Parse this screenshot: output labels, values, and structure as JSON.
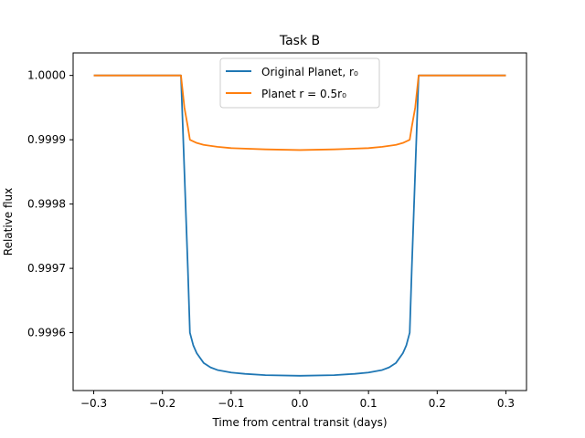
{
  "chart_data": {
    "type": "line",
    "title": "Task B",
    "xlabel": "Time from central transit (days)",
    "ylabel": "Relative flux",
    "xlim": [
      -0.33,
      0.33
    ],
    "ylim": [
      0.99951,
      1.000035
    ],
    "x_ticks": [
      -0.3,
      -0.2,
      -0.1,
      0.0,
      0.1,
      0.2,
      0.3
    ],
    "x_tick_labels": [
      "−0.3",
      "−0.2",
      "−0.1",
      "0.0",
      "0.1",
      "0.2",
      "0.3"
    ],
    "y_ticks": [
      0.9996,
      0.9997,
      0.9998,
      0.9999,
      1.0
    ],
    "y_tick_labels": [
      "0.9996",
      "0.9997",
      "0.9998",
      "0.9999",
      "1.0000"
    ],
    "grid": false,
    "legend_position": "top-center",
    "series": [
      {
        "name": "Original Planet, r₀",
        "color": "#1f77b4",
        "points": [
          [
            -0.3,
            1.0
          ],
          [
            -0.25,
            1.0
          ],
          [
            -0.2,
            1.0
          ],
          [
            -0.173,
            1.0
          ],
          [
            -0.168,
            0.99985
          ],
          [
            -0.163,
            0.9997
          ],
          [
            -0.16,
            0.9996
          ],
          [
            -0.155,
            0.99958
          ],
          [
            -0.15,
            0.999568
          ],
          [
            -0.14,
            0.999553
          ],
          [
            -0.13,
            0.999546
          ],
          [
            -0.12,
            0.999542
          ],
          [
            -0.1,
            0.999538
          ],
          [
            -0.08,
            0.999536
          ],
          [
            -0.05,
            0.999534
          ],
          [
            0.0,
            0.999533
          ],
          [
            0.05,
            0.999534
          ],
          [
            0.08,
            0.999536
          ],
          [
            0.1,
            0.999538
          ],
          [
            0.12,
            0.999542
          ],
          [
            0.13,
            0.999546
          ],
          [
            0.14,
            0.999553
          ],
          [
            0.15,
            0.999568
          ],
          [
            0.155,
            0.99958
          ],
          [
            0.16,
            0.9996
          ],
          [
            0.163,
            0.9997
          ],
          [
            0.168,
            0.99985
          ],
          [
            0.173,
            1.0
          ],
          [
            0.2,
            1.0
          ],
          [
            0.25,
            1.0
          ],
          [
            0.3,
            1.0
          ]
        ]
      },
      {
        "name": "Planet r = 0.5r₀",
        "color": "#ff7f0e",
        "points": [
          [
            -0.3,
            1.0
          ],
          [
            -0.25,
            1.0
          ],
          [
            -0.2,
            1.0
          ],
          [
            -0.173,
            1.0
          ],
          [
            -0.168,
            0.99995
          ],
          [
            -0.163,
            0.99992
          ],
          [
            -0.16,
            0.9999
          ],
          [
            -0.15,
            0.999895
          ],
          [
            -0.14,
            0.999892
          ],
          [
            -0.12,
            0.999889
          ],
          [
            -0.1,
            0.999887
          ],
          [
            -0.05,
            0.999885
          ],
          [
            0.0,
            0.999884
          ],
          [
            0.05,
            0.999885
          ],
          [
            0.1,
            0.999887
          ],
          [
            0.12,
            0.999889
          ],
          [
            0.14,
            0.999892
          ],
          [
            0.15,
            0.999895
          ],
          [
            0.16,
            0.9999
          ],
          [
            0.163,
            0.99992
          ],
          [
            0.168,
            0.99995
          ],
          [
            0.173,
            1.0
          ],
          [
            0.2,
            1.0
          ],
          [
            0.25,
            1.0
          ],
          [
            0.3,
            1.0
          ]
        ]
      }
    ]
  }
}
